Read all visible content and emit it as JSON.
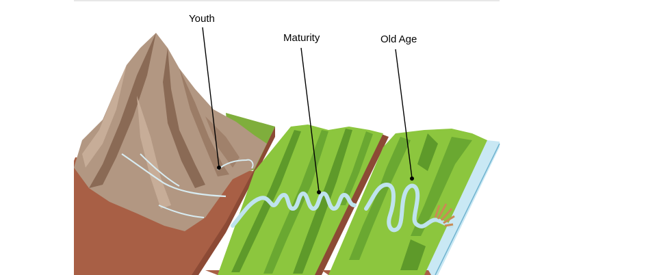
{
  "labels": {
    "youth": "Youth",
    "maturity": "Maturity",
    "old_age": "Old Age"
  },
  "colors": {
    "mountain_light": "#b29782",
    "mountain_dark": "#8a6a55",
    "soil": "#a85f45",
    "soil_dark": "#8c4a35",
    "grass_light": "#8cc63e",
    "grass_dark": "#5e9a2a",
    "river": "#bfe3ee",
    "sea": "#c9e8f4",
    "delta": "#c98b55"
  }
}
